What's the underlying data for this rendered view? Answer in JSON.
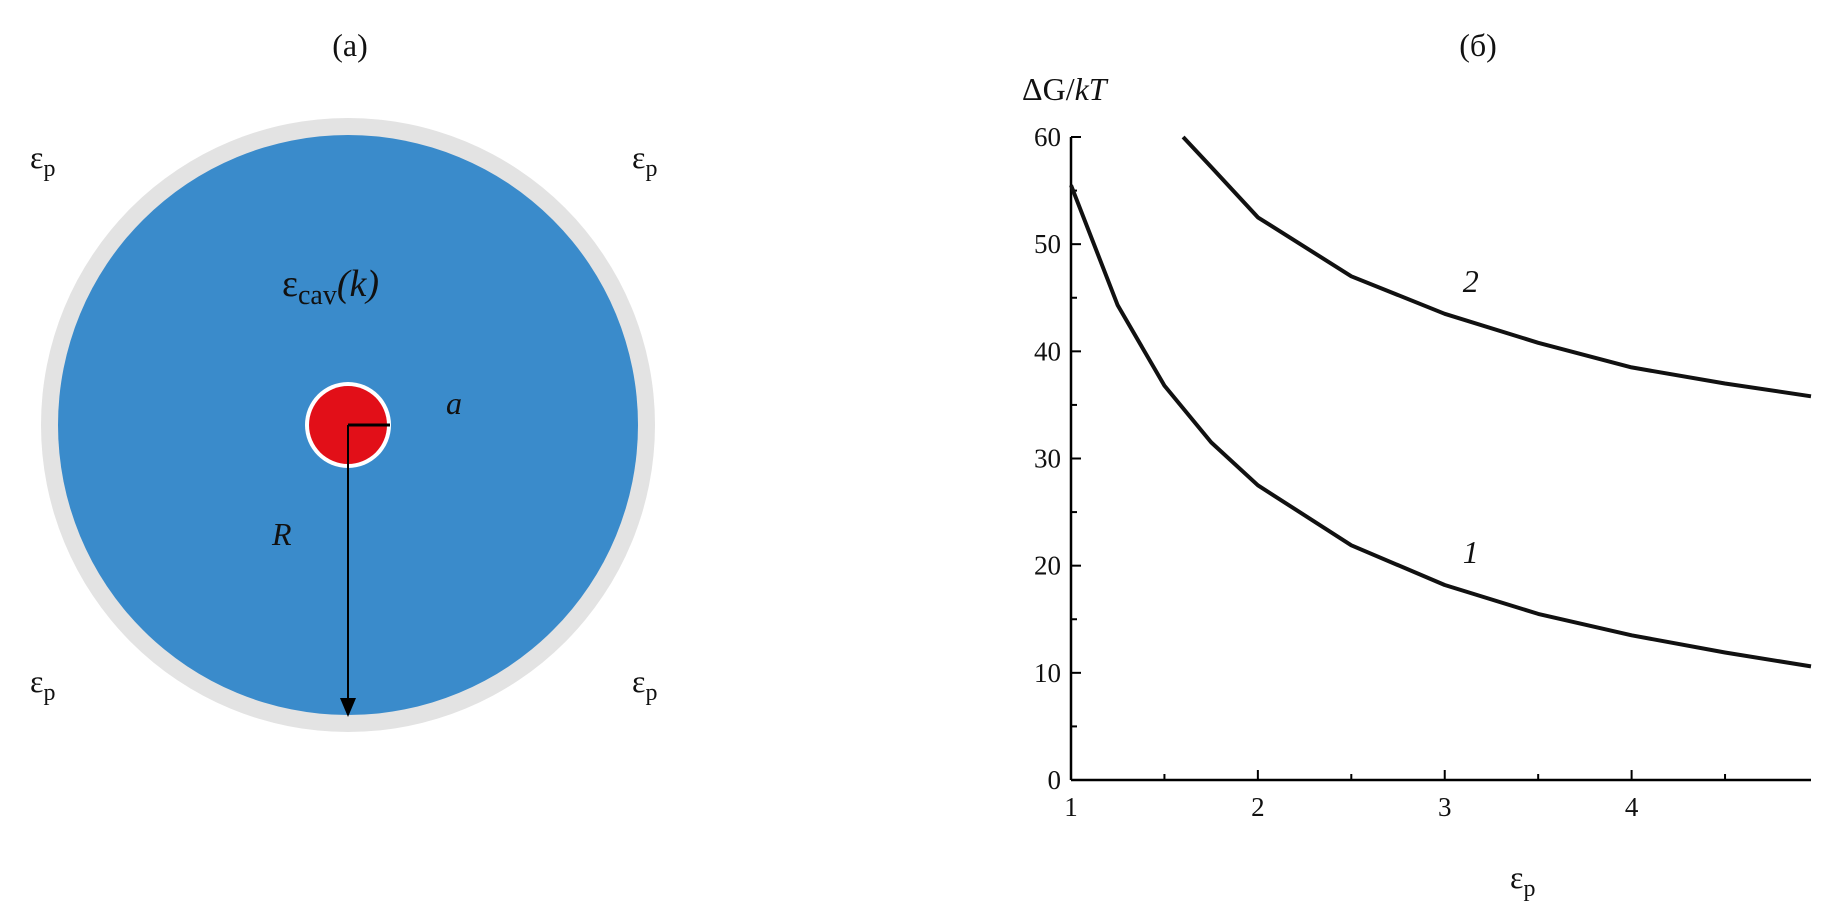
{
  "diagram": {
    "title": "(a)",
    "medium_label": {
      "base": "ε",
      "sub": "p"
    },
    "cavity_label": {
      "base": "ε",
      "sub": "cav",
      "arg": "(k)"
    },
    "inner_radius_label": "a",
    "outer_radius_label": "R"
  },
  "chart_data": {
    "type": "line",
    "title": "(б)",
    "y_label": {
      "base": "ΔG/",
      "italic": "kT"
    },
    "x_label": {
      "base": "ε",
      "sub": "p"
    },
    "xlim": [
      1,
      4.96
    ],
    "ylim": [
      0,
      60
    ],
    "xticks": [
      1,
      2,
      3,
      4
    ],
    "yticks": [
      0,
      10,
      20,
      30,
      40,
      50,
      60
    ],
    "series": [
      {
        "name": "1",
        "color": "#111111",
        "x": [
          1,
          1.25,
          1.5,
          1.75,
          2,
          2.5,
          3,
          3.5,
          4,
          4.5,
          4.96
        ],
        "values": [
          55.5,
          44.3,
          36.8,
          31.5,
          27.5,
          21.9,
          18.2,
          15.5,
          13.5,
          11.9,
          10.6
        ]
      },
      {
        "name": "2",
        "color": "#111111",
        "x": [
          1.6,
          1.75,
          2,
          2.5,
          3,
          3.5,
          4,
          4.5,
          4.96
        ],
        "values": [
          60,
          57.2,
          52.5,
          47,
          43.5,
          40.8,
          38.5,
          37,
          35.8
        ]
      }
    ]
  }
}
